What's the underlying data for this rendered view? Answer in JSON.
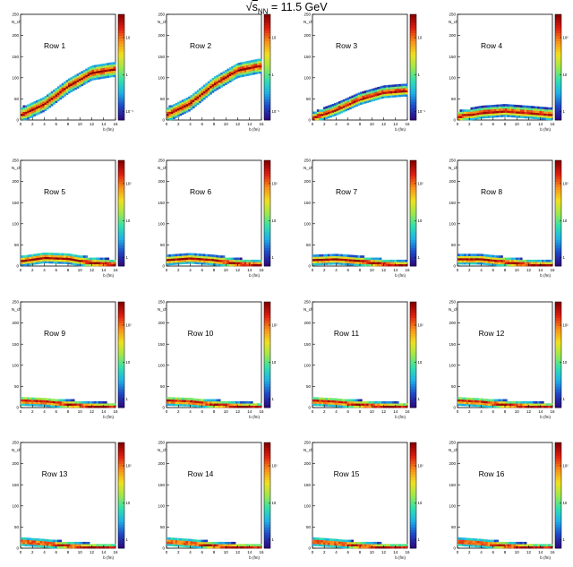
{
  "title": {
    "sqrt_symbol": "√",
    "s": "s",
    "subscript": "NN",
    "rest": " = 11.5 GeV"
  },
  "axes": {
    "ylabel": "N_ch",
    "xlabel": "b (fm)",
    "x_ticks": [
      "0",
      "2",
      "4",
      "6",
      "8",
      "10",
      "12",
      "14",
      "16"
    ],
    "y_ticks": [
      "0",
      "50",
      "100",
      "150",
      "200",
      "250"
    ],
    "xlim": [
      0,
      16
    ],
    "ylim": [
      0,
      250
    ]
  },
  "colormap": [
    "#2b0a80",
    "#1f48c8",
    "#1fb0e8",
    "#2fe0b0",
    "#9ee84a",
    "#f0e020",
    "#f89018",
    "#e02010",
    "#8c0000"
  ],
  "chart_data": [
    {
      "type": "heatmap",
      "title": "Row 1",
      "colorbar_ticks": [
        "10⁻¹",
        "1",
        "10"
      ],
      "peak_ch_vs_b": [
        [
          0,
          12
        ],
        [
          4,
          38
        ],
        [
          8,
          80
        ],
        [
          12,
          112
        ],
        [
          15.5,
          120
        ]
      ],
      "band_halfwidth": 18
    },
    {
      "type": "heatmap",
      "title": "Row 2",
      "colorbar_ticks": [
        "10⁻¹",
        "1",
        "10"
      ],
      "peak_ch_vs_b": [
        [
          0,
          12
        ],
        [
          4,
          40
        ],
        [
          8,
          85
        ],
        [
          12,
          118
        ],
        [
          15.5,
          128
        ]
      ],
      "band_halfwidth": 18
    },
    {
      "type": "heatmap",
      "title": "Row 3",
      "colorbar_ticks": [
        "10⁻¹",
        "1",
        "10"
      ],
      "peak_ch_vs_b": [
        [
          0,
          5
        ],
        [
          4,
          25
        ],
        [
          8,
          50
        ],
        [
          12,
          66
        ],
        [
          15.5,
          70
        ]
      ],
      "band_halfwidth": 14
    },
    {
      "type": "heatmap",
      "title": "Row 4",
      "colorbar_ticks": [
        "1",
        "10",
        "10²"
      ],
      "peak_ch_vs_b": [
        [
          0,
          8
        ],
        [
          4,
          18
        ],
        [
          8,
          22
        ],
        [
          12,
          18
        ],
        [
          15.5,
          14
        ]
      ],
      "band_halfwidth": 14
    },
    {
      "type": "heatmap",
      "title": "Row 5",
      "colorbar_ticks": [
        "1",
        "10",
        "10²"
      ],
      "peak_ch_vs_b": [
        [
          0,
          12
        ],
        [
          4,
          20
        ],
        [
          8,
          18
        ],
        [
          12,
          8
        ],
        [
          15.5,
          4
        ]
      ],
      "band_halfwidth": 13
    },
    {
      "type": "heatmap",
      "title": "Row 6",
      "colorbar_ticks": [
        "1",
        "10",
        "10²"
      ],
      "peak_ch_vs_b": [
        [
          0,
          14
        ],
        [
          4,
          18
        ],
        [
          8,
          14
        ],
        [
          12,
          6
        ],
        [
          15.5,
          3
        ]
      ],
      "band_halfwidth": 12
    },
    {
      "type": "heatmap",
      "title": "Row 7",
      "colorbar_ticks": [
        "1",
        "10",
        "10²"
      ],
      "peak_ch_vs_b": [
        [
          0,
          14
        ],
        [
          4,
          16
        ],
        [
          8,
          12
        ],
        [
          12,
          5
        ],
        [
          15.5,
          2
        ]
      ],
      "band_halfwidth": 12
    },
    {
      "type": "heatmap",
      "title": "Row 8",
      "colorbar_ticks": [
        "1",
        "10",
        "10²"
      ],
      "peak_ch_vs_b": [
        [
          0,
          16
        ],
        [
          4,
          16
        ],
        [
          8,
          10
        ],
        [
          12,
          4
        ],
        [
          15.5,
          2
        ]
      ],
      "band_halfwidth": 12
    },
    {
      "type": "heatmap",
      "title": "Row 9",
      "colorbar_ticks": [
        "1",
        "10",
        "10²"
      ],
      "peak_ch_vs_b": [
        [
          0,
          16
        ],
        [
          4,
          14
        ],
        [
          8,
          8
        ],
        [
          12,
          3
        ],
        [
          15.5,
          1
        ]
      ],
      "band_halfwidth": 11
    },
    {
      "type": "heatmap",
      "title": "Row 10",
      "colorbar_ticks": [
        "1",
        "10",
        "10²"
      ],
      "peak_ch_vs_b": [
        [
          0,
          16
        ],
        [
          4,
          14
        ],
        [
          8,
          8
        ],
        [
          12,
          3
        ],
        [
          15.5,
          1
        ]
      ],
      "band_halfwidth": 11
    },
    {
      "type": "heatmap",
      "title": "Row 11",
      "colorbar_ticks": [
        "1",
        "10",
        "10²"
      ],
      "peak_ch_vs_b": [
        [
          0,
          16
        ],
        [
          4,
          13
        ],
        [
          8,
          7
        ],
        [
          12,
          3
        ],
        [
          15.5,
          1
        ]
      ],
      "band_halfwidth": 11
    },
    {
      "type": "heatmap",
      "title": "Row 12",
      "colorbar_ticks": [
        "1",
        "10",
        "10²"
      ],
      "peak_ch_vs_b": [
        [
          0,
          16
        ],
        [
          4,
          13
        ],
        [
          8,
          7
        ],
        [
          12,
          3
        ],
        [
          15.5,
          1
        ]
      ],
      "band_halfwidth": 11
    },
    {
      "type": "heatmap",
      "title": "Row 13",
      "colorbar_ticks": [
        "1",
        "10",
        "10²"
      ],
      "peak_ch_vs_b": [
        [
          0,
          16
        ],
        [
          4,
          12
        ],
        [
          8,
          6
        ],
        [
          12,
          2
        ],
        [
          15.5,
          1
        ]
      ],
      "band_halfwidth": 10
    },
    {
      "type": "heatmap",
      "title": "Row 14",
      "colorbar_ticks": [
        "1",
        "10",
        "10²"
      ],
      "peak_ch_vs_b": [
        [
          0,
          16
        ],
        [
          4,
          12
        ],
        [
          8,
          6
        ],
        [
          12,
          2
        ],
        [
          15.5,
          1
        ]
      ],
      "band_halfwidth": 10
    },
    {
      "type": "heatmap",
      "title": "Row 15",
      "colorbar_ticks": [
        "1",
        "10",
        "10²"
      ],
      "peak_ch_vs_b": [
        [
          0,
          16
        ],
        [
          4,
          12
        ],
        [
          8,
          6
        ],
        [
          12,
          2
        ],
        [
          15.5,
          1
        ]
      ],
      "band_halfwidth": 10
    },
    {
      "type": "heatmap",
      "title": "Row 16",
      "colorbar_ticks": [
        "1",
        "10",
        "10²"
      ],
      "peak_ch_vs_b": [
        [
          0,
          16
        ],
        [
          4,
          12
        ],
        [
          8,
          6
        ],
        [
          12,
          2
        ],
        [
          15.5,
          1
        ]
      ],
      "band_halfwidth": 10
    }
  ]
}
